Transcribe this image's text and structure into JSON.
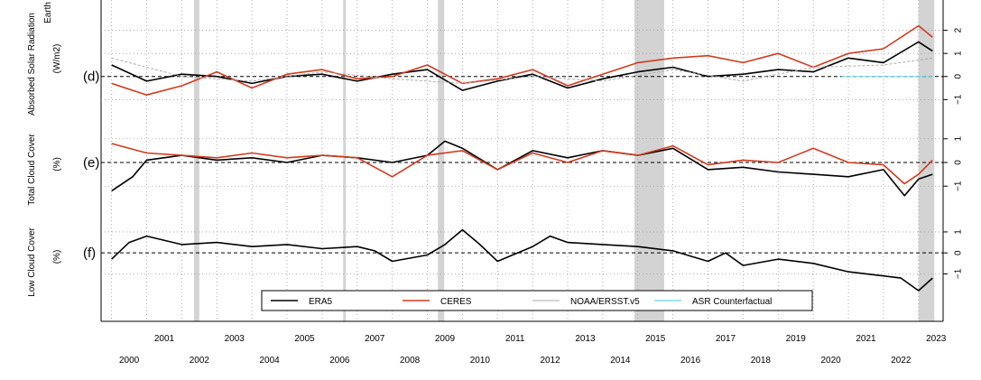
{
  "chart_data": {
    "type": "line",
    "x_unit": "year",
    "x_ticks_upper": [
      "2001",
      "2003",
      "2005",
      "2007",
      "2009",
      "2011",
      "2013",
      "2015",
      "2017",
      "2019",
      "2021",
      "2023"
    ],
    "x_ticks_lower": [
      "2000",
      "2002",
      "2004",
      "2006",
      "2008",
      "2010",
      "2012",
      "2014",
      "2016",
      "2018",
      "2020",
      "2022"
    ],
    "shaded_periods": [
      [
        2002.35,
        2002.5
      ],
      [
        2006.6,
        2006.65
      ],
      [
        2009.3,
        2009.48
      ],
      [
        2014.9,
        2015.75
      ],
      [
        2023.0,
        2023.45
      ]
    ],
    "legend": [
      "ERA5",
      "CERES",
      "NOAA/ERSST.v5",
      "ASR Counterfactual"
    ],
    "colors": {
      "ERA5": "#000000",
      "CERES": "#d13b1e",
      "NOAA/ERSST.v5": "#aaaaaa",
      "ASR Counterfactual": "#7fdcea",
      "shade": "#d3d3d3"
    },
    "panels": [
      {
        "label": "(d)",
        "ylabel_line1": "Absorbed Solar Radiation",
        "ylabel_line2": "(W/m2)",
        "ylabel_top_fragment": "Earth",
        "y_ticks": [
          "2",
          "1",
          "0",
          "-1"
        ],
        "ylim": [
          -1.3,
          3.0
        ],
        "series": [
          {
            "name": "ERA5",
            "x": [
              2000.0,
              2001.0,
              2002.0,
              2003.0,
              2004.0,
              2005.0,
              2006.0,
              2007.0,
              2008.0,
              2009.0,
              2010.0,
              2011.0,
              2012.0,
              2013.0,
              2014.0,
              2015.0,
              2016.0,
              2017.0,
              2018.0,
              2019.0,
              2020.0,
              2021.0,
              2022.0,
              2023.0,
              2023.4
            ],
            "y": [
              0.5,
              -0.2,
              0.1,
              0.0,
              -0.3,
              0.0,
              0.1,
              -0.2,
              0.1,
              0.3,
              -0.6,
              -0.2,
              0.1,
              -0.5,
              -0.1,
              0.2,
              0.4,
              0.0,
              0.1,
              0.3,
              0.2,
              0.8,
              0.6,
              1.5,
              1.1
            ]
          },
          {
            "name": "CERES",
            "x": [
              2000.0,
              2001.0,
              2002.0,
              2003.0,
              2004.0,
              2005.0,
              2006.0,
              2007.0,
              2008.0,
              2009.0,
              2010.0,
              2011.0,
              2012.0,
              2013.0,
              2014.0,
              2015.0,
              2016.0,
              2017.0,
              2018.0,
              2019.0,
              2020.0,
              2021.0,
              2022.0,
              2023.0,
              2023.4
            ],
            "y": [
              -0.3,
              -0.8,
              -0.4,
              0.2,
              -0.5,
              0.1,
              0.3,
              -0.1,
              0.0,
              0.5,
              -0.3,
              -0.1,
              0.3,
              -0.4,
              0.1,
              0.6,
              0.8,
              0.9,
              0.6,
              1.0,
              0.4,
              1.0,
              1.2,
              2.2,
              1.7
            ]
          },
          {
            "name": "NOAA/ERSST.v5",
            "x": [
              2000.0,
              2002.0,
              2004.0,
              2006.0,
              2008.0,
              2010.0,
              2012.0,
              2014.0,
              2016.0,
              2018.0,
              2020.0,
              2022.0,
              2023.4
            ],
            "y": [
              0.8,
              0.0,
              -0.2,
              0.2,
              -0.1,
              -0.3,
              0.0,
              -0.2,
              0.3,
              -0.2,
              0.4,
              0.5,
              0.8
            ]
          },
          {
            "name": "ASR Counterfactual",
            "x": [
              2020.8,
              2023.4
            ],
            "y": [
              0.0,
              0.0
            ]
          }
        ]
      },
      {
        "label": "(e)",
        "ylabel_line1": "Total Cloud Cover",
        "ylabel_line2": "(%)",
        "y_ticks": [
          "1",
          "0",
          "-1"
        ],
        "ylim": [
          -1.6,
          1.6
        ],
        "series": [
          {
            "name": "ERA5",
            "x": [
              2000.0,
              2000.6,
              2001.0,
              2002.0,
              2003.0,
              2004.0,
              2005.0,
              2006.0,
              2007.0,
              2008.0,
              2009.0,
              2009.5,
              2010.0,
              2011.0,
              2012.0,
              2013.0,
              2014.0,
              2015.0,
              2016.0,
              2017.0,
              2018.0,
              2019.0,
              2020.0,
              2021.0,
              2022.0,
              2022.6,
              2023.0,
              2023.4
            ],
            "y": [
              -1.2,
              -0.6,
              0.1,
              0.3,
              0.1,
              0.2,
              0.0,
              0.3,
              0.2,
              0.0,
              0.3,
              0.9,
              0.6,
              -0.3,
              0.5,
              0.2,
              0.5,
              0.3,
              0.6,
              -0.3,
              -0.2,
              -0.4,
              -0.5,
              -0.6,
              -0.3,
              -1.4,
              -0.7,
              -0.5
            ]
          },
          {
            "name": "CERES",
            "x": [
              2000.0,
              2001.0,
              2002.0,
              2003.0,
              2004.0,
              2005.0,
              2006.0,
              2007.0,
              2008.0,
              2009.0,
              2010.0,
              2011.0,
              2012.0,
              2013.0,
              2014.0,
              2015.0,
              2016.0,
              2017.0,
              2018.0,
              2019.0,
              2020.0,
              2021.0,
              2022.0,
              2022.6,
              2023.0,
              2023.4
            ],
            "y": [
              0.8,
              0.4,
              0.3,
              0.2,
              0.4,
              0.2,
              0.3,
              0.2,
              -0.6,
              0.3,
              0.5,
              -0.3,
              0.4,
              0.0,
              0.5,
              0.3,
              0.7,
              -0.1,
              0.1,
              0.0,
              0.6,
              0.0,
              -0.1,
              -0.9,
              -0.5,
              0.1
            ]
          }
        ]
      },
      {
        "label": "(f)",
        "ylabel_line1": "Low Cloud Cover",
        "ylabel_line2": "(%)",
        "y_ticks": [
          "1",
          "0",
          "-1"
        ],
        "ylim": [
          -1.8,
          1.6
        ],
        "series": [
          {
            "name": "ERA5",
            "x": [
              2000.0,
              2000.5,
              2001.0,
              2002.0,
              2003.0,
              2004.0,
              2005.0,
              2006.0,
              2007.0,
              2007.5,
              2008.0,
              2009.0,
              2009.5,
              2010.0,
              2010.5,
              2011.0,
              2012.0,
              2012.5,
              2013.0,
              2014.0,
              2015.0,
              2016.0,
              2017.0,
              2017.5,
              2018.0,
              2019.0,
              2020.0,
              2021.0,
              2022.0,
              2022.5,
              2023.0,
              2023.4
            ],
            "y": [
              -0.3,
              0.5,
              0.8,
              0.4,
              0.5,
              0.3,
              0.4,
              0.2,
              0.3,
              0.1,
              -0.4,
              -0.1,
              0.4,
              1.1,
              0.4,
              -0.4,
              0.3,
              0.8,
              0.5,
              0.4,
              0.3,
              0.1,
              -0.4,
              0.0,
              -0.6,
              -0.3,
              -0.5,
              -0.9,
              -1.1,
              -1.2,
              -1.8,
              -1.2
            ]
          }
        ]
      }
    ]
  }
}
